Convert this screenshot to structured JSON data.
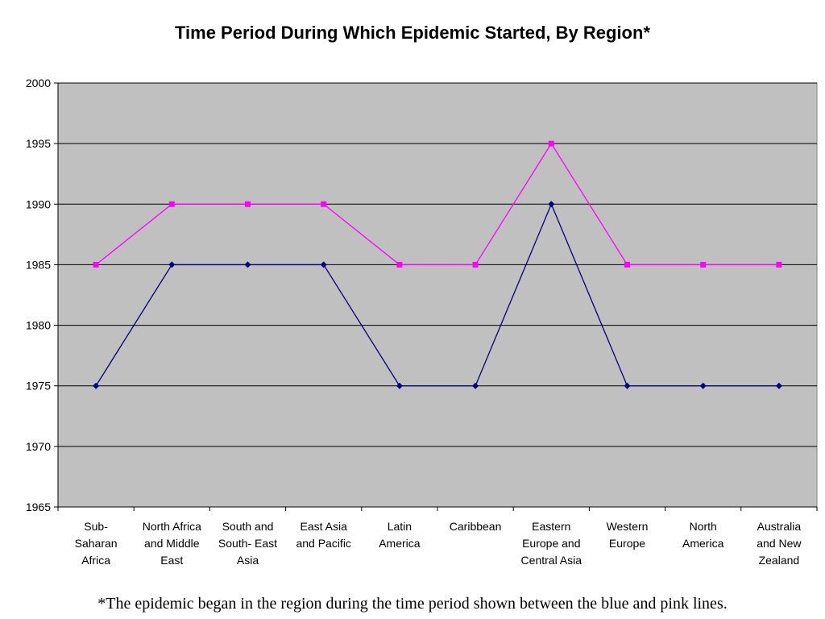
{
  "chart_data": {
    "type": "line",
    "title": "Time Period During Which Epidemic Started, By Region*",
    "xlabel": "",
    "ylabel": "",
    "categories": [
      "Sub-Saharan Africa",
      "North Africa and Middle East",
      "South and South- East Asia",
      "East Asia and Pacific",
      "Latin America",
      "Caribbean",
      "Eastern Europe and Central Asia",
      "Western Europe",
      "North America",
      "Australia and New Zealand"
    ],
    "category_label_lines": [
      [
        "Sub-",
        "Saharan",
        "Africa"
      ],
      [
        "North Africa",
        "and Middle",
        "East"
      ],
      [
        "South and",
        "South- East",
        "Asia"
      ],
      [
        "East Asia",
        "and Pacific"
      ],
      [
        "Latin",
        "America"
      ],
      [
        "Caribbean"
      ],
      [
        "Eastern",
        "Europe and",
        "Central Asia"
      ],
      [
        "Western",
        "Europe"
      ],
      [
        "North",
        "America"
      ],
      [
        "Australia",
        "and New",
        "Zealand"
      ]
    ],
    "ylim": [
      1965,
      2000
    ],
    "yticks": [
      1965,
      1970,
      1975,
      1980,
      1985,
      1990,
      1995,
      2000
    ],
    "grid": true,
    "legend": "none",
    "plot_background": "#c0c0c0",
    "series": [
      {
        "color": "#000080",
        "marker": "diamond",
        "values": [
          1975,
          1985,
          1985,
          1985,
          1975,
          1975,
          1990,
          1975,
          1975,
          1975
        ]
      },
      {
        "color": "#ff00ff",
        "marker": "square",
        "values": [
          1985,
          1990,
          1990,
          1990,
          1985,
          1985,
          1995,
          1985,
          1985,
          1985
        ]
      }
    ]
  },
  "footnote": "*The epidemic began in the region during the time period shown between the blue and pink lines."
}
